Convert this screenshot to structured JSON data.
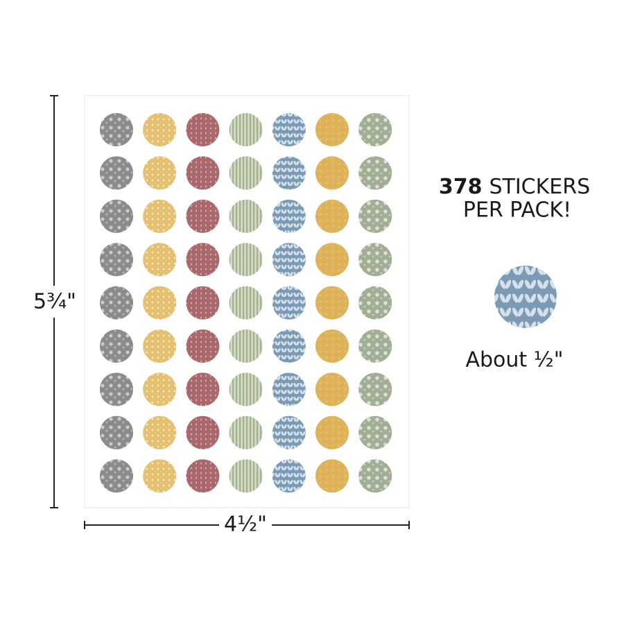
{
  "dimensions": {
    "height": "5¾\"",
    "width": "4½\""
  },
  "headline": {
    "count": 378,
    "line1": "STICKERS",
    "line2": "PER PACK!"
  },
  "sample": {
    "caption": "About ½\""
  }
}
